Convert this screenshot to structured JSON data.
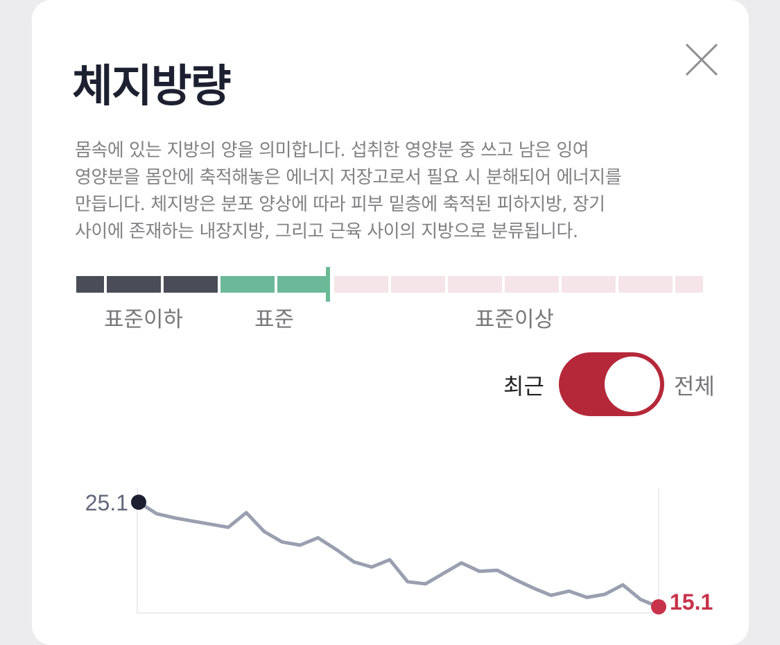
{
  "title": "체지방량",
  "description": "몸속에 있는 지방의 양을 의미합니다. 섭취한 영양분 중 쓰고 남은 잉여\n영양분을 몸안에 축적해놓은 에너지 저장고로서 필요 시 분해되어 에너지를\n만듭니다. 체지방은 분포 양상에 따라 피부 밑층에 축적된 피하지방, 장기\n사이에 존재하는 내장지방, 그리고 근육 사이의 지방으로 분류됩니다.",
  "gauge": {
    "labels": [
      "표준이하",
      "표준",
      "표준이상"
    ],
    "colors": {
      "below": "#4a4c57",
      "standard": "#6cb99a",
      "above": "#f5e4e8"
    }
  },
  "toggle": {
    "left_label": "최근",
    "right_label": "전체",
    "on_color": "#b52839"
  },
  "chart_data": {
    "type": "line",
    "values": [
      25.1,
      24.0,
      23.6,
      23.3,
      23.0,
      22.7,
      24.1,
      22.3,
      21.3,
      21.0,
      21.7,
      20.6,
      19.4,
      18.9,
      19.6,
      17.5,
      17.3,
      18.3,
      19.3,
      18.5,
      18.6,
      17.7,
      16.9,
      16.2,
      16.6,
      16.0,
      16.3,
      17.2,
      15.8,
      15.1
    ],
    "first_label": "25.1",
    "last_label": "15.1",
    "y_range": [
      14.5,
      26.5
    ],
    "line_color": "#9a9fb0",
    "first_point_color": "#1d2030",
    "last_point_color": "#c8324a"
  }
}
